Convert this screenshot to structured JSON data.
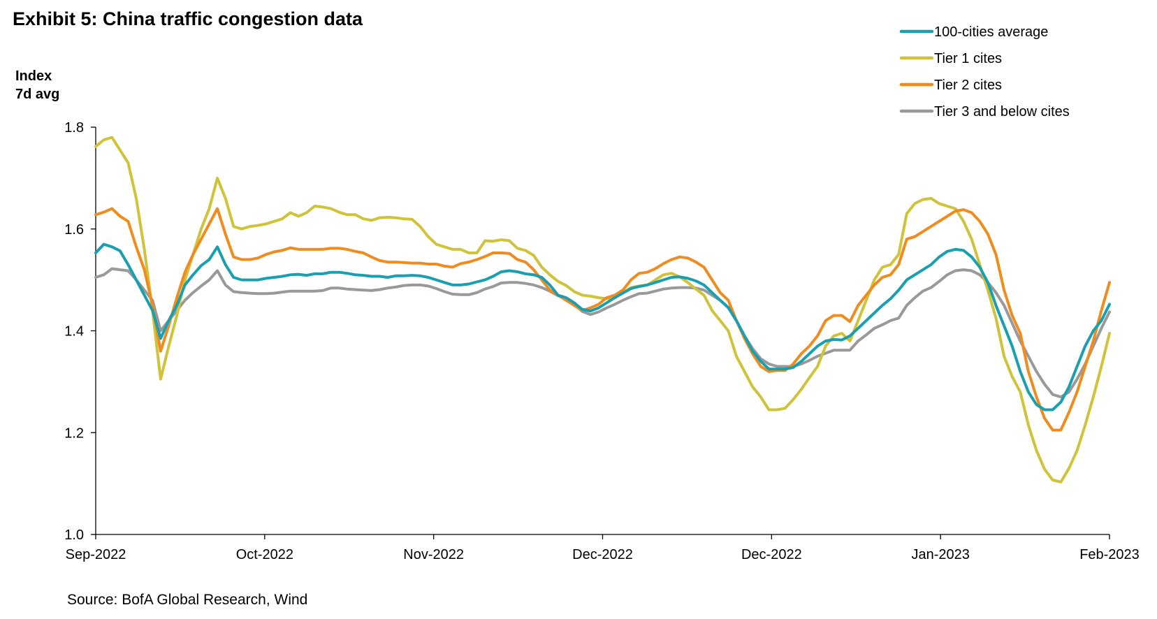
{
  "title": "Exhibit 5: China traffic congestion data",
  "ylabel_lines": [
    "Index",
    "7d avg"
  ],
  "source": "Source: BofA Global Research, Wind",
  "chart_data": {
    "type": "line",
    "title": "Exhibit 5: China traffic congestion data",
    "ylabel": "Index 7d avg",
    "xlabel": "",
    "ylim": [
      1.0,
      1.8
    ],
    "yticks": [
      "1.8",
      "1.6",
      "1.4",
      "1.2",
      "1.0"
    ],
    "xticks": [
      "Sep-2022",
      "Oct-2022",
      "Nov-2022",
      "Dec-2022",
      "Dec-2022",
      "Jan-2023",
      "Feb-2023"
    ],
    "grid": false,
    "legend_position": "top-right",
    "series": [
      {
        "name": "100-cities average",
        "color": "#1a9fb0",
        "values": [
          1.553,
          1.57,
          1.565,
          1.557,
          1.53,
          1.5,
          1.47,
          1.44,
          1.385,
          1.42,
          1.45,
          1.49,
          1.51,
          1.528,
          1.54,
          1.565,
          1.53,
          1.505,
          1.5,
          1.5,
          1.5,
          1.503,
          1.505,
          1.507,
          1.51,
          1.511,
          1.509,
          1.512,
          1.512,
          1.515,
          1.515,
          1.513,
          1.51,
          1.509,
          1.507,
          1.507,
          1.505,
          1.508,
          1.508,
          1.509,
          1.508,
          1.505,
          1.5,
          1.495,
          1.49,
          1.49,
          1.492,
          1.496,
          1.5,
          1.507,
          1.516,
          1.518,
          1.516,
          1.512,
          1.51,
          1.505,
          1.49,
          1.47,
          1.465,
          1.455,
          1.442,
          1.439,
          1.445,
          1.455,
          1.465,
          1.474,
          1.483,
          1.487,
          1.49,
          1.495,
          1.5,
          1.505,
          1.506,
          1.503,
          1.498,
          1.49,
          1.475,
          1.46,
          1.446,
          1.42,
          1.39,
          1.36,
          1.34,
          1.325,
          1.325,
          1.325,
          1.328,
          1.34,
          1.355,
          1.37,
          1.38,
          1.383,
          1.382,
          1.39,
          1.405,
          1.42,
          1.435,
          1.45,
          1.463,
          1.48,
          1.5,
          1.51,
          1.52,
          1.53,
          1.545,
          1.556,
          1.56,
          1.558,
          1.545,
          1.525,
          1.495,
          1.45,
          1.41,
          1.37,
          1.32,
          1.28,
          1.255,
          1.245,
          1.245,
          1.26,
          1.29,
          1.33,
          1.37,
          1.4,
          1.42,
          1.452
        ]
      },
      {
        "name": "Tier 1 cites",
        "color": "#cfc33a",
        "values": [
          1.762,
          1.775,
          1.78,
          1.755,
          1.73,
          1.66,
          1.56,
          1.44,
          1.305,
          1.37,
          1.43,
          1.5,
          1.55,
          1.6,
          1.64,
          1.7,
          1.66,
          1.605,
          1.6,
          1.605,
          1.607,
          1.61,
          1.615,
          1.62,
          1.632,
          1.625,
          1.632,
          1.645,
          1.643,
          1.64,
          1.633,
          1.628,
          1.628,
          1.62,
          1.617,
          1.622,
          1.623,
          1.622,
          1.62,
          1.619,
          1.605,
          1.585,
          1.57,
          1.565,
          1.56,
          1.56,
          1.553,
          1.553,
          1.577,
          1.576,
          1.579,
          1.577,
          1.562,
          1.558,
          1.548,
          1.525,
          1.51,
          1.497,
          1.489,
          1.477,
          1.47,
          1.468,
          1.465,
          1.463,
          1.465,
          1.475,
          1.485,
          1.488,
          1.49,
          1.5,
          1.51,
          1.513,
          1.506,
          1.495,
          1.482,
          1.47,
          1.44,
          1.42,
          1.4,
          1.35,
          1.32,
          1.29,
          1.27,
          1.245,
          1.245,
          1.248,
          1.265,
          1.285,
          1.308,
          1.33,
          1.37,
          1.39,
          1.395,
          1.38,
          1.42,
          1.46,
          1.5,
          1.525,
          1.53,
          1.55,
          1.63,
          1.65,
          1.658,
          1.66,
          1.65,
          1.645,
          1.64,
          1.615,
          1.58,
          1.53,
          1.48,
          1.425,
          1.35,
          1.31,
          1.28,
          1.215,
          1.165,
          1.128,
          1.107,
          1.103,
          1.13,
          1.165,
          1.215,
          1.27,
          1.33,
          1.395
        ]
      },
      {
        "name": "Tier 2 cites",
        "color": "#f08c1e",
        "values": [
          1.628,
          1.633,
          1.64,
          1.625,
          1.615,
          1.565,
          1.52,
          1.45,
          1.36,
          1.41,
          1.465,
          1.515,
          1.55,
          1.58,
          1.61,
          1.64,
          1.59,
          1.545,
          1.54,
          1.54,
          1.543,
          1.55,
          1.555,
          1.558,
          1.563,
          1.56,
          1.56,
          1.56,
          1.56,
          1.562,
          1.562,
          1.56,
          1.556,
          1.553,
          1.545,
          1.538,
          1.535,
          1.535,
          1.534,
          1.533,
          1.533,
          1.531,
          1.531,
          1.527,
          1.525,
          1.532,
          1.535,
          1.54,
          1.546,
          1.553,
          1.553,
          1.552,
          1.54,
          1.535,
          1.52,
          1.5,
          1.48,
          1.47,
          1.46,
          1.45,
          1.44,
          1.445,
          1.452,
          1.465,
          1.47,
          1.48,
          1.5,
          1.513,
          1.515,
          1.522,
          1.532,
          1.54,
          1.545,
          1.543,
          1.535,
          1.525,
          1.5,
          1.475,
          1.46,
          1.42,
          1.385,
          1.355,
          1.33,
          1.32,
          1.322,
          1.322,
          1.335,
          1.355,
          1.37,
          1.39,
          1.42,
          1.43,
          1.43,
          1.418,
          1.45,
          1.47,
          1.49,
          1.505,
          1.51,
          1.53,
          1.58,
          1.585,
          1.595,
          1.605,
          1.615,
          1.625,
          1.635,
          1.638,
          1.632,
          1.615,
          1.59,
          1.55,
          1.48,
          1.43,
          1.395,
          1.32,
          1.27,
          1.228,
          1.205,
          1.205,
          1.24,
          1.28,
          1.33,
          1.38,
          1.44,
          1.495
        ]
      },
      {
        "name": "Tier 3 and below cites",
        "color": "#999999",
        "values": [
          1.505,
          1.51,
          1.522,
          1.52,
          1.518,
          1.5,
          1.48,
          1.46,
          1.4,
          1.42,
          1.44,
          1.46,
          1.475,
          1.488,
          1.5,
          1.518,
          1.49,
          1.477,
          1.475,
          1.474,
          1.473,
          1.473,
          1.474,
          1.476,
          1.478,
          1.478,
          1.478,
          1.478,
          1.479,
          1.484,
          1.484,
          1.482,
          1.481,
          1.48,
          1.479,
          1.481,
          1.484,
          1.486,
          1.489,
          1.49,
          1.49,
          1.488,
          1.483,
          1.477,
          1.472,
          1.471,
          1.471,
          1.475,
          1.482,
          1.487,
          1.494,
          1.495,
          1.495,
          1.493,
          1.49,
          1.485,
          1.478,
          1.469,
          1.462,
          1.452,
          1.438,
          1.432,
          1.437,
          1.445,
          1.452,
          1.46,
          1.467,
          1.473,
          1.474,
          1.478,
          1.482,
          1.484,
          1.485,
          1.485,
          1.484,
          1.48,
          1.47,
          1.46,
          1.445,
          1.42,
          1.39,
          1.365,
          1.345,
          1.335,
          1.33,
          1.33,
          1.33,
          1.335,
          1.342,
          1.35,
          1.356,
          1.362,
          1.362,
          1.362,
          1.38,
          1.392,
          1.405,
          1.412,
          1.42,
          1.425,
          1.45,
          1.465,
          1.478,
          1.485,
          1.497,
          1.51,
          1.518,
          1.52,
          1.518,
          1.51,
          1.495,
          1.475,
          1.45,
          1.415,
          1.38,
          1.35,
          1.32,
          1.295,
          1.275,
          1.27,
          1.28,
          1.305,
          1.335,
          1.37,
          1.405,
          1.437
        ]
      }
    ]
  }
}
